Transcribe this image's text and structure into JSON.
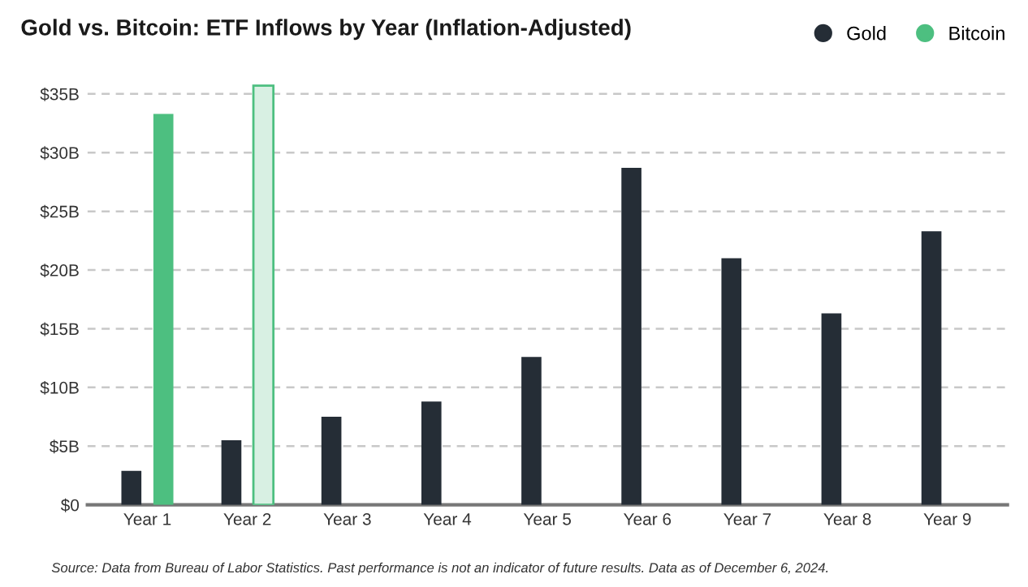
{
  "chart_data": {
    "type": "bar",
    "title": "Gold vs. Bitcoin: ETF Inflows by Year (Inflation-Adjusted)",
    "categories": [
      "Year 1",
      "Year 2",
      "Year 3",
      "Year 4",
      "Year 5",
      "Year 6",
      "Year 7",
      "Year 8",
      "Year 9"
    ],
    "series": [
      {
        "name": "Gold",
        "color": "#252d36",
        "values": [
          2.9,
          5.5,
          7.5,
          8.8,
          12.6,
          28.7,
          21.0,
          16.3,
          23.3
        ]
      },
      {
        "name": "Bitcoin",
        "color": "#4dbf80",
        "colors": [
          "#4dbf80",
          "#d8f0e3",
          null,
          null,
          null,
          null,
          null,
          null,
          null
        ],
        "values": [
          33.3,
          35.7,
          null,
          null,
          null,
          null,
          null,
          null,
          null
        ]
      }
    ],
    "ylim": [
      0,
      36
    ],
    "yticks": [
      {
        "value": 0,
        "label": "$0"
      },
      {
        "value": 5,
        "label": "$5B"
      },
      {
        "value": 10,
        "label": "$10B"
      },
      {
        "value": 15,
        "label": "$15B"
      },
      {
        "value": 20,
        "label": "$20B"
      },
      {
        "value": 25,
        "label": "$25B"
      },
      {
        "value": 30,
        "label": "$30B"
      },
      {
        "value": 35,
        "label": "$35B"
      }
    ],
    "grid": "y",
    "legend": "top right",
    "annotations": [
      "Source: Data from Bureau of Labor Statistics. Past performance is not an indicator of future results. Data as of December 6, 2024."
    ]
  }
}
